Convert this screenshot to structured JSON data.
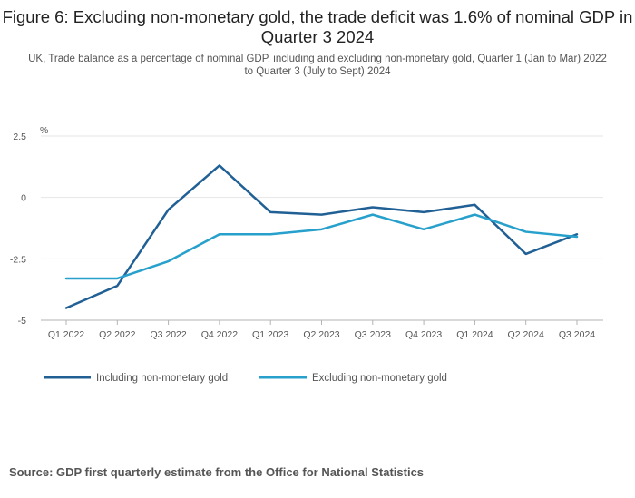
{
  "chart_data": {
    "type": "line",
    "title": "Figure 6: Excluding non-monetary gold, the trade deficit was 1.6% of nominal GDP in Quarter 3 2024",
    "subtitle": "UK, Trade balance as a percentage of nominal GDP, including and excluding non-monetary gold, Quarter 1 (Jan to Mar) 2022 to Quarter 3 (July to Sept) 2024",
    "unit_label": "%",
    "categories": [
      "Q1 2022",
      "Q2 2022",
      "Q3 2022",
      "Q4 2022",
      "Q1 2023",
      "Q2 2023",
      "Q3 2023",
      "Q4 2023",
      "Q1 2024",
      "Q2 2024",
      "Q3 2024"
    ],
    "yticks": [
      2.5,
      0,
      -2.5,
      -5
    ],
    "ytick_labels": [
      "2.5",
      "0",
      "-2.5",
      "-5"
    ],
    "ylim": [
      -5,
      2.5
    ],
    "grid": true,
    "legend_position": "bottom-left",
    "series": [
      {
        "name": "Including non-monetary gold",
        "color": "#206095",
        "values": [
          -4.5,
          -3.6,
          -0.5,
          1.3,
          -0.6,
          -0.7,
          -0.4,
          -0.6,
          -0.3,
          -2.3,
          -1.5
        ]
      },
      {
        "name": "Excluding non-monetary gold",
        "color": "#27a0cc",
        "values": [
          -3.3,
          -3.3,
          -2.6,
          -1.5,
          -1.5,
          -1.3,
          -0.7,
          -1.3,
          -0.7,
          -1.4,
          -1.6
        ]
      }
    ]
  },
  "source": "Source: GDP first quarterly estimate from the Office for National Statistics"
}
